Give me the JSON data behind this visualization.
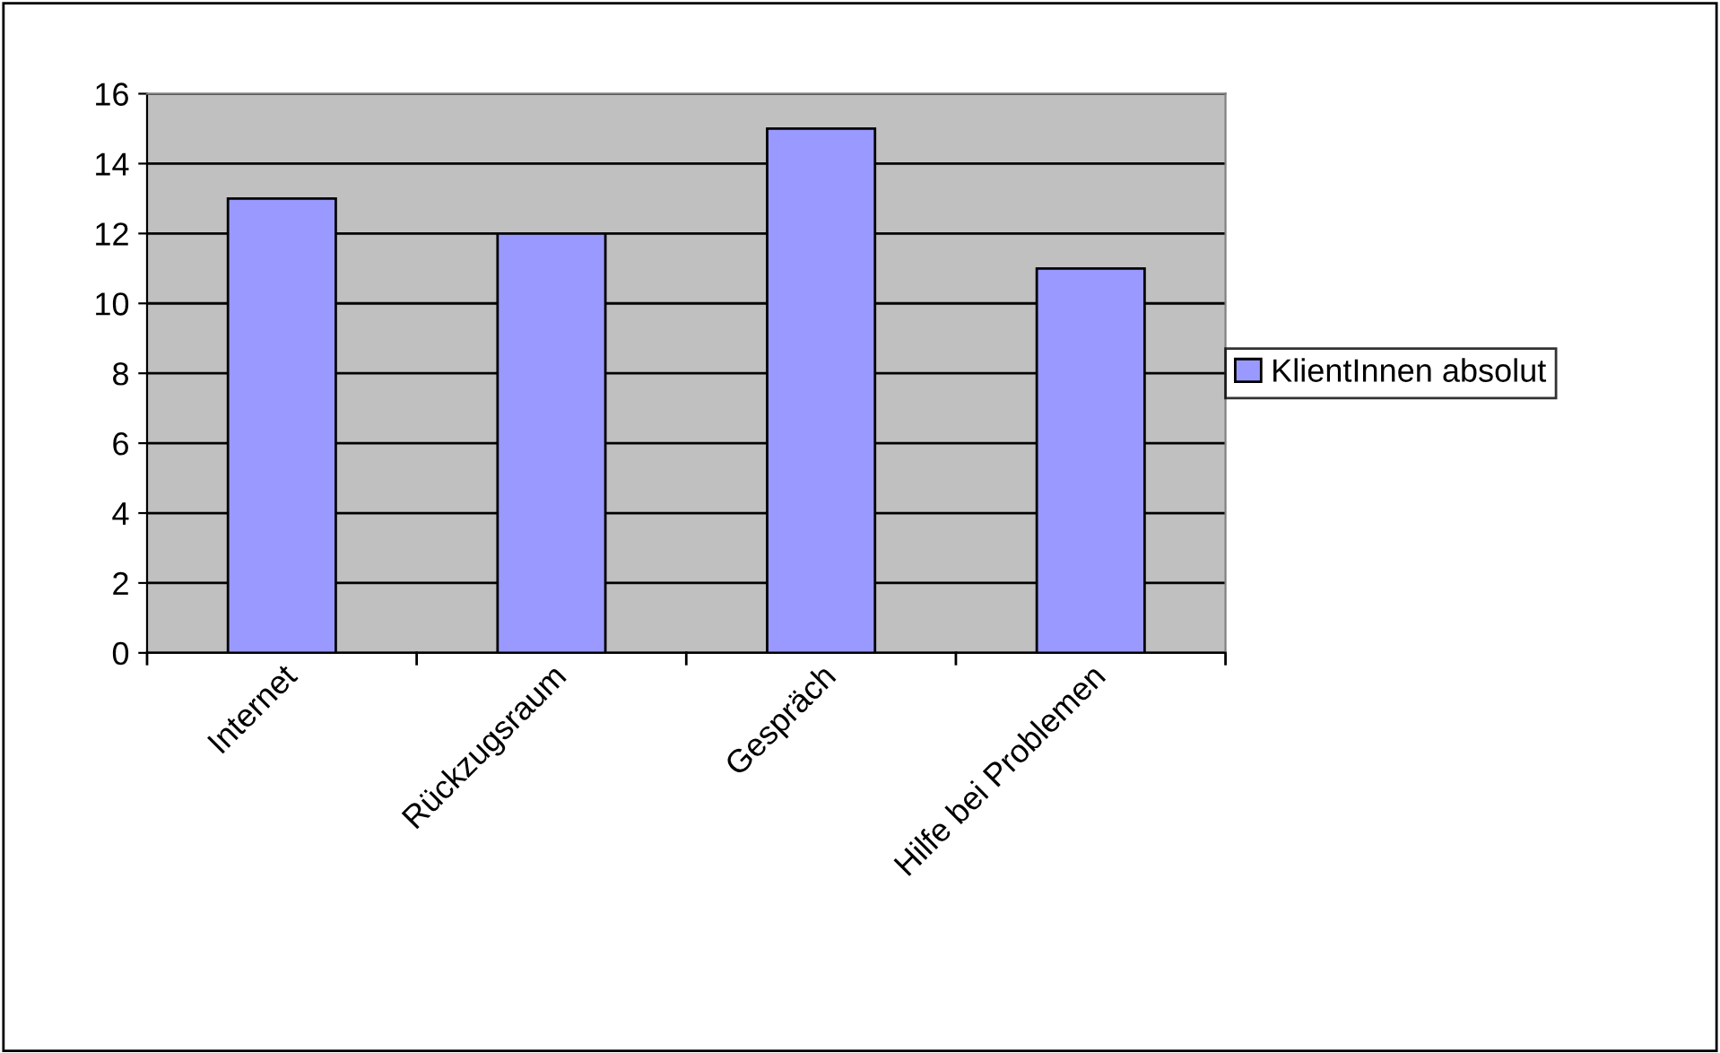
{
  "chart_data": {
    "type": "bar",
    "categories": [
      "Internet",
      "Rückzugsraum",
      "Gespräch",
      "Hilfe bei Problemen"
    ],
    "series": [
      {
        "name": "KlientInnen absolut",
        "color": "#9999ff",
        "values": [
          13,
          12,
          15,
          11
        ]
      }
    ],
    "ylim": [
      0,
      16
    ],
    "yticks": [
      0,
      2,
      4,
      6,
      8,
      10,
      12,
      14,
      16
    ],
    "grid": "y",
    "legend": "right"
  }
}
